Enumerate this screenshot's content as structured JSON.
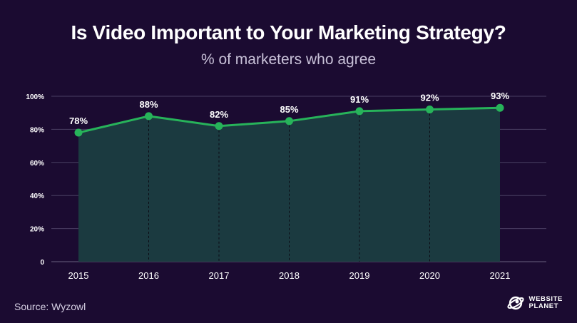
{
  "header": {
    "title": "Is Video Important to Your Marketing Strategy?",
    "subtitle": "% of marketers who agree"
  },
  "footer": {
    "source": "Source: Wyzowl",
    "brand_line1": "WEBSITE",
    "brand_line2": "PLANET"
  },
  "colors": {
    "background": "#1b0b31",
    "line": "#27b35a",
    "area_fill": "#1b3a40",
    "grid": "#4a3f63"
  },
  "chart_data": {
    "type": "area",
    "title": "Is Video Important to Your Marketing Strategy?",
    "subtitle": "% of marketers who agree",
    "categories": [
      "2015",
      "2016",
      "2017",
      "2018",
      "2019",
      "2020",
      "2021"
    ],
    "values": [
      78,
      88,
      82,
      85,
      91,
      92,
      93
    ],
    "data_labels": [
      "78%",
      "88%",
      "82%",
      "85%",
      "91%",
      "92%",
      "93%"
    ],
    "y_ticks": [
      0,
      20,
      40,
      60,
      80,
      100
    ],
    "y_tick_labels": [
      "0",
      "20%",
      "40%",
      "60%",
      "80%",
      "100%"
    ],
    "ylim": [
      0,
      100
    ],
    "grid": true,
    "legend": "none"
  }
}
